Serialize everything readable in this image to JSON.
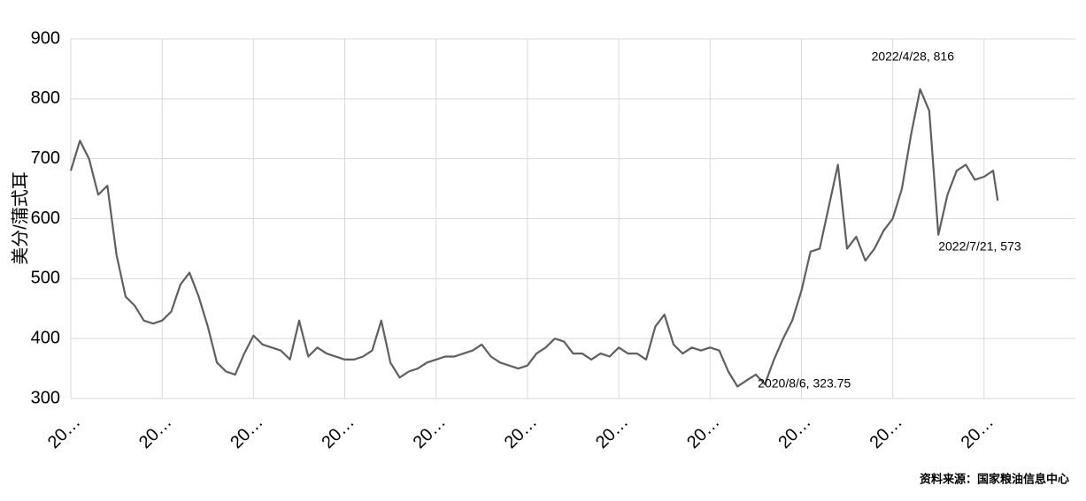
{
  "chart_data": {
    "type": "line",
    "y_label": "美分/蒲式耳",
    "source": "资料来源：国家粮油信息中心",
    "x": [
      0,
      1,
      2,
      3,
      4,
      5,
      6,
      7,
      8,
      9,
      10,
      11,
      12,
      13,
      14,
      15,
      16,
      17,
      18,
      19,
      20,
      21,
      22,
      23,
      24,
      25,
      26,
      27,
      28,
      29,
      30,
      31,
      32,
      33,
      34,
      35,
      36,
      37,
      38,
      39,
      40,
      41,
      42,
      43,
      44,
      45,
      46,
      47,
      48,
      49,
      50,
      51,
      52,
      53,
      54,
      55,
      56,
      57,
      58,
      59,
      60,
      61,
      62,
      63,
      64,
      65,
      66,
      67,
      68,
      69,
      70,
      71,
      72,
      73,
      74,
      75,
      76,
      77,
      78,
      79,
      80,
      81,
      82,
      83,
      84,
      85,
      86,
      87,
      88,
      89,
      90,
      91,
      92,
      93,
      94,
      95,
      96,
      97,
      98,
      99,
      100,
      101,
      101.5
    ],
    "series": [
      {
        "name": "",
        "color": "#5f5f5f",
        "values": [
          680,
          730,
          700,
          640,
          655,
          540,
          470,
          455,
          430,
          425,
          430,
          445,
          490,
          510,
          470,
          420,
          360,
          345,
          340,
          375,
          405,
          390,
          385,
          380,
          365,
          430,
          370,
          385,
          375,
          370,
          365,
          365,
          370,
          380,
          430,
          360,
          335,
          345,
          350,
          360,
          365,
          370,
          370,
          375,
          380,
          390,
          370,
          360,
          355,
          350,
          355,
          375,
          385,
          400,
          395,
          375,
          375,
          365,
          375,
          370,
          385,
          375,
          375,
          365,
          420,
          440,
          390,
          375,
          385,
          380,
          385,
          380,
          345,
          320,
          330,
          340,
          323.75,
          365,
          400,
          430,
          480,
          545,
          550,
          620,
          690,
          550,
          570,
          530,
          550,
          580,
          600,
          650,
          740,
          816,
          780,
          573,
          640,
          680,
          690,
          665,
          670,
          680,
          630
        ]
      }
    ],
    "annotations": [
      {
        "index": 76,
        "text": "2020/8/6, 323.75"
      },
      {
        "index": 93,
        "text": "2022/4/28, 816"
      },
      {
        "index": 95,
        "text": "2022/7/21, 573"
      }
    ],
    "xlim": [
      0,
      110
    ],
    "xticks": [
      {
        "value": 0,
        "label": "20…"
      },
      {
        "value": 10,
        "label": "20…"
      },
      {
        "value": 20,
        "label": "20…"
      },
      {
        "value": 30,
        "label": "20…"
      },
      {
        "value": 40,
        "label": "20…"
      },
      {
        "value": 50,
        "label": "20…"
      },
      {
        "value": 60,
        "label": "20…"
      },
      {
        "value": 70,
        "label": "20…"
      },
      {
        "value": 80,
        "label": "20…"
      },
      {
        "value": 90,
        "label": "20…"
      },
      {
        "value": 100,
        "label": "20…"
      }
    ],
    "ylim": [
      300,
      900
    ],
    "yticks": [
      300,
      400,
      500,
      600,
      700,
      800,
      900
    ],
    "grid": true
  }
}
